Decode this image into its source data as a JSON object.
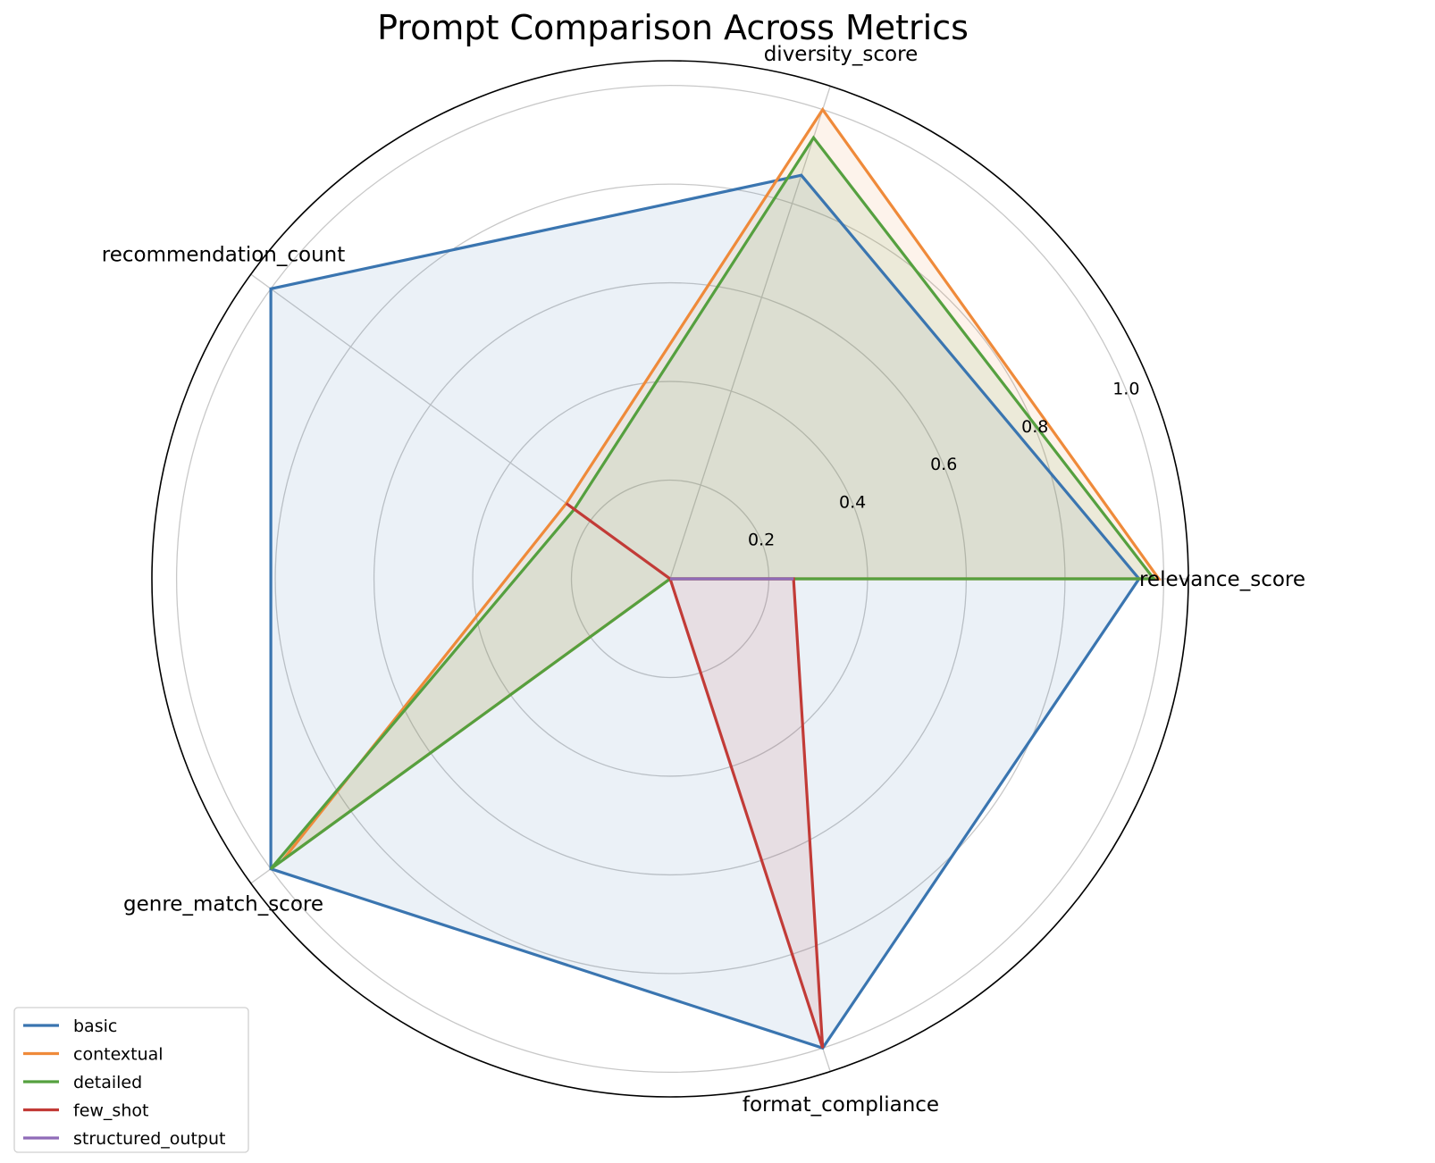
{
  "chart_data": {
    "type": "radar",
    "title": "Prompt Comparison Across Metrics",
    "axes": [
      "relevance_score",
      "diversity_score",
      "recommendation_count",
      "genre_match_score",
      "format_compliance"
    ],
    "r_ticks": [
      0.2,
      0.4,
      0.6,
      0.8,
      1.0
    ],
    "r_tick_labels": [
      "0.2",
      "0.4",
      "0.6",
      "0.8",
      "1.0"
    ],
    "rlim": [
      0,
      1.05
    ],
    "grid": true,
    "legend_position": "bottom-left",
    "series": [
      {
        "name": "basic",
        "color": "#3a75b0",
        "fill": true,
        "values": {
          "relevance_score": 0.95,
          "diversity_score": 0.86,
          "format_compliance": 1.0,
          "genre_match_score": 1.0,
          "recommendation_count": 1.0
        }
      },
      {
        "name": "contextual",
        "color": "#ef8a3a",
        "fill": true,
        "values": {
          "relevance_score": 0.99,
          "diversity_score": 1.0,
          "format_compliance": 0.0,
          "genre_match_score": 0.97,
          "recommendation_count": 0.26
        }
      },
      {
        "name": "detailed",
        "color": "#55a03f",
        "fill": true,
        "values": {
          "relevance_score": 0.98,
          "diversity_score": 0.94,
          "format_compliance": 0.0,
          "genre_match_score": 1.0,
          "recommendation_count": 0.24
        }
      },
      {
        "name": "few_shot",
        "color": "#c23b37",
        "fill": true,
        "values": {
          "relevance_score": 0.25,
          "diversity_score": 0.0,
          "format_compliance": 1.0,
          "genre_match_score": 0.0,
          "recommendation_count": 0.26
        }
      },
      {
        "name": "structured_output",
        "color": "#8f6bb8",
        "fill": false,
        "values": {
          "relevance_score": 0.25,
          "diversity_score": 0.0,
          "format_compliance": 0.0,
          "genre_match_score": 0.0,
          "recommendation_count": 0.0
        }
      }
    ]
  }
}
